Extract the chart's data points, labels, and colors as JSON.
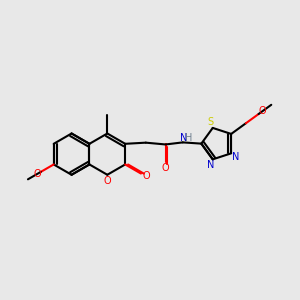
{
  "background_color": "#e8e8e8",
  "bond_color": "#000000",
  "colors": {
    "O": "#ff0000",
    "N": "#0000cd",
    "S": "#cccc00",
    "H": "#708090",
    "C": "#000000"
  },
  "figsize": [
    3.0,
    3.0
  ],
  "dpi": 100,
  "xlim": [
    -3.0,
    4.2
  ],
  "ylim": [
    -1.6,
    1.6
  ]
}
